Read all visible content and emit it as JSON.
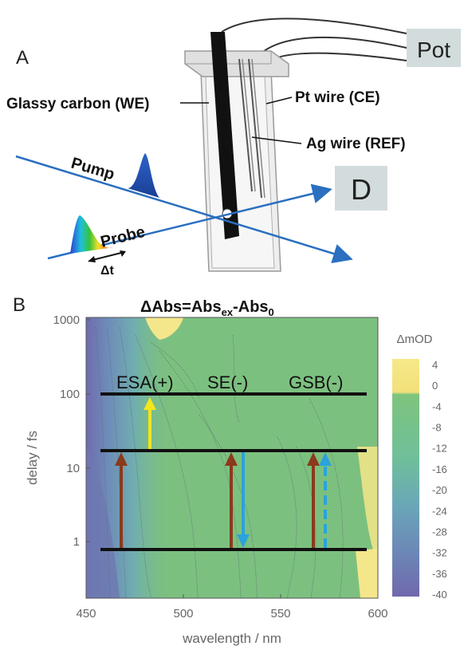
{
  "panel_a": {
    "letter": "A",
    "labels": {
      "pot": "Pot",
      "detector": "D",
      "working_electrode": "Glassy carbon (WE)",
      "counter_electrode": "Pt wire (CE)",
      "reference_electrode": "Ag wire (REF)",
      "pump": "Pump",
      "probe": "Probe",
      "delay": "Δt"
    }
  },
  "panel_b": {
    "letter": "B",
    "title_main": "ΔAbs=Abs",
    "title_sub1": "ex",
    "title_mid": "-Abs",
    "title_sub2": "0",
    "xlabel": "wavelength / nm",
    "ylabel": "delay / fs",
    "colorbar_label": "ΔmOD",
    "x_ticks": [
      "450",
      "500",
      "550",
      "600"
    ],
    "y_ticks": [
      "1000",
      "100",
      "10",
      "1"
    ],
    "colorbar_ticks": [
      "4",
      "0",
      "-4",
      "-8",
      "-12",
      "-16",
      "-20",
      "-24",
      "-28",
      "-32",
      "-36",
      "-40"
    ],
    "process_labels": [
      "ESA(+)",
      "SE(-)",
      "GSB(-)"
    ],
    "colors": {
      "esa_arrow": "#f5e51c",
      "se_arrow": "#2aa3dc",
      "excitation_arrow": "#8b3a1c",
      "map_base": "#7cc07f",
      "map_low": "#6f6fae",
      "map_high": "#f4e68a"
    }
  },
  "chart_data": {
    "type": "heatmap",
    "title": "ΔAbs=Abs_ex-Abs_0",
    "xlabel": "wavelength / nm",
    "ylabel": "delay / fs",
    "xlim": [
      450,
      600
    ],
    "ylim": [
      0.5,
      1500
    ],
    "y_scale": "log",
    "colorbar": {
      "label": "ΔmOD",
      "range": [
        -40,
        4
      ],
      "ticks": [
        4,
        0,
        -4,
        -8,
        -12,
        -16,
        -20,
        -24,
        -28,
        -32,
        -36,
        -40
      ]
    },
    "energy_levels": 3,
    "annotations": [
      "ESA(+)",
      "SE(-)",
      "GSB(-)"
    ]
  }
}
